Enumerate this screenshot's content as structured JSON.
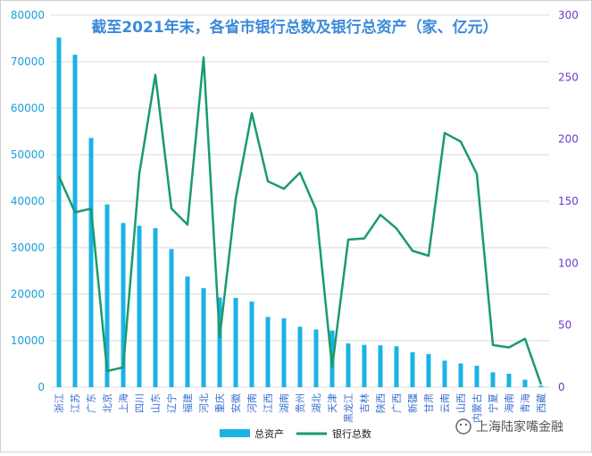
{
  "chart_data": {
    "type": "bar+line",
    "title": "截至2021年末，各省市银行总数及银行总资产（家、亿元）",
    "categories": [
      "浙江",
      "江苏",
      "广东",
      "北京",
      "上海",
      "四川",
      "山东",
      "辽宁",
      "福建",
      "河北",
      "重庆",
      "安徽",
      "河南",
      "江西",
      "湖南",
      "贵州",
      "湖北",
      "天津",
      "黑龙江",
      "吉林",
      "陕西",
      "广西",
      "新疆",
      "甘肃",
      "云南",
      "山西",
      "内蒙古",
      "宁夏",
      "海南",
      "青海",
      "西藏"
    ],
    "series": [
      {
        "name": "总资产",
        "type": "bar",
        "axis": "left",
        "color": "#1ab3e6",
        "values": [
          75200,
          71500,
          53600,
          39300,
          35300,
          34700,
          34200,
          29700,
          23800,
          21300,
          19300,
          19200,
          18400,
          15100,
          14800,
          13000,
          12400,
          12200,
          9400,
          9100,
          9000,
          8800,
          7500,
          7100,
          5700,
          5100,
          4600,
          3200,
          2900,
          1600,
          300
        ]
      },
      {
        "name": "银行总数",
        "type": "line",
        "axis": "right",
        "color": "#1a9b6c",
        "values": [
          170,
          141,
          144,
          13,
          16,
          172,
          252,
          144,
          131,
          266,
          40,
          152,
          221,
          166,
          160,
          173,
          143,
          16,
          119,
          120,
          139,
          128,
          110,
          106,
          205,
          198,
          172,
          34,
          32,
          39,
          2
        ]
      }
    ],
    "y_left": {
      "min": 0,
      "max": 80000,
      "ticks": [
        "0",
        "10000",
        "20000",
        "30000",
        "40000",
        "50000",
        "60000",
        "70000",
        "80000"
      ],
      "color": "#1a9fd6"
    },
    "y_right": {
      "min": 0,
      "max": 300,
      "ticks": [
        "0",
        "50",
        "100",
        "150",
        "200",
        "250",
        "300"
      ],
      "color": "#6a3cc8"
    },
    "grid": true,
    "legend": {
      "position": "bottom",
      "items": [
        "总资产",
        "银行总数"
      ]
    },
    "watermark": "上海陆家嘴金融"
  }
}
